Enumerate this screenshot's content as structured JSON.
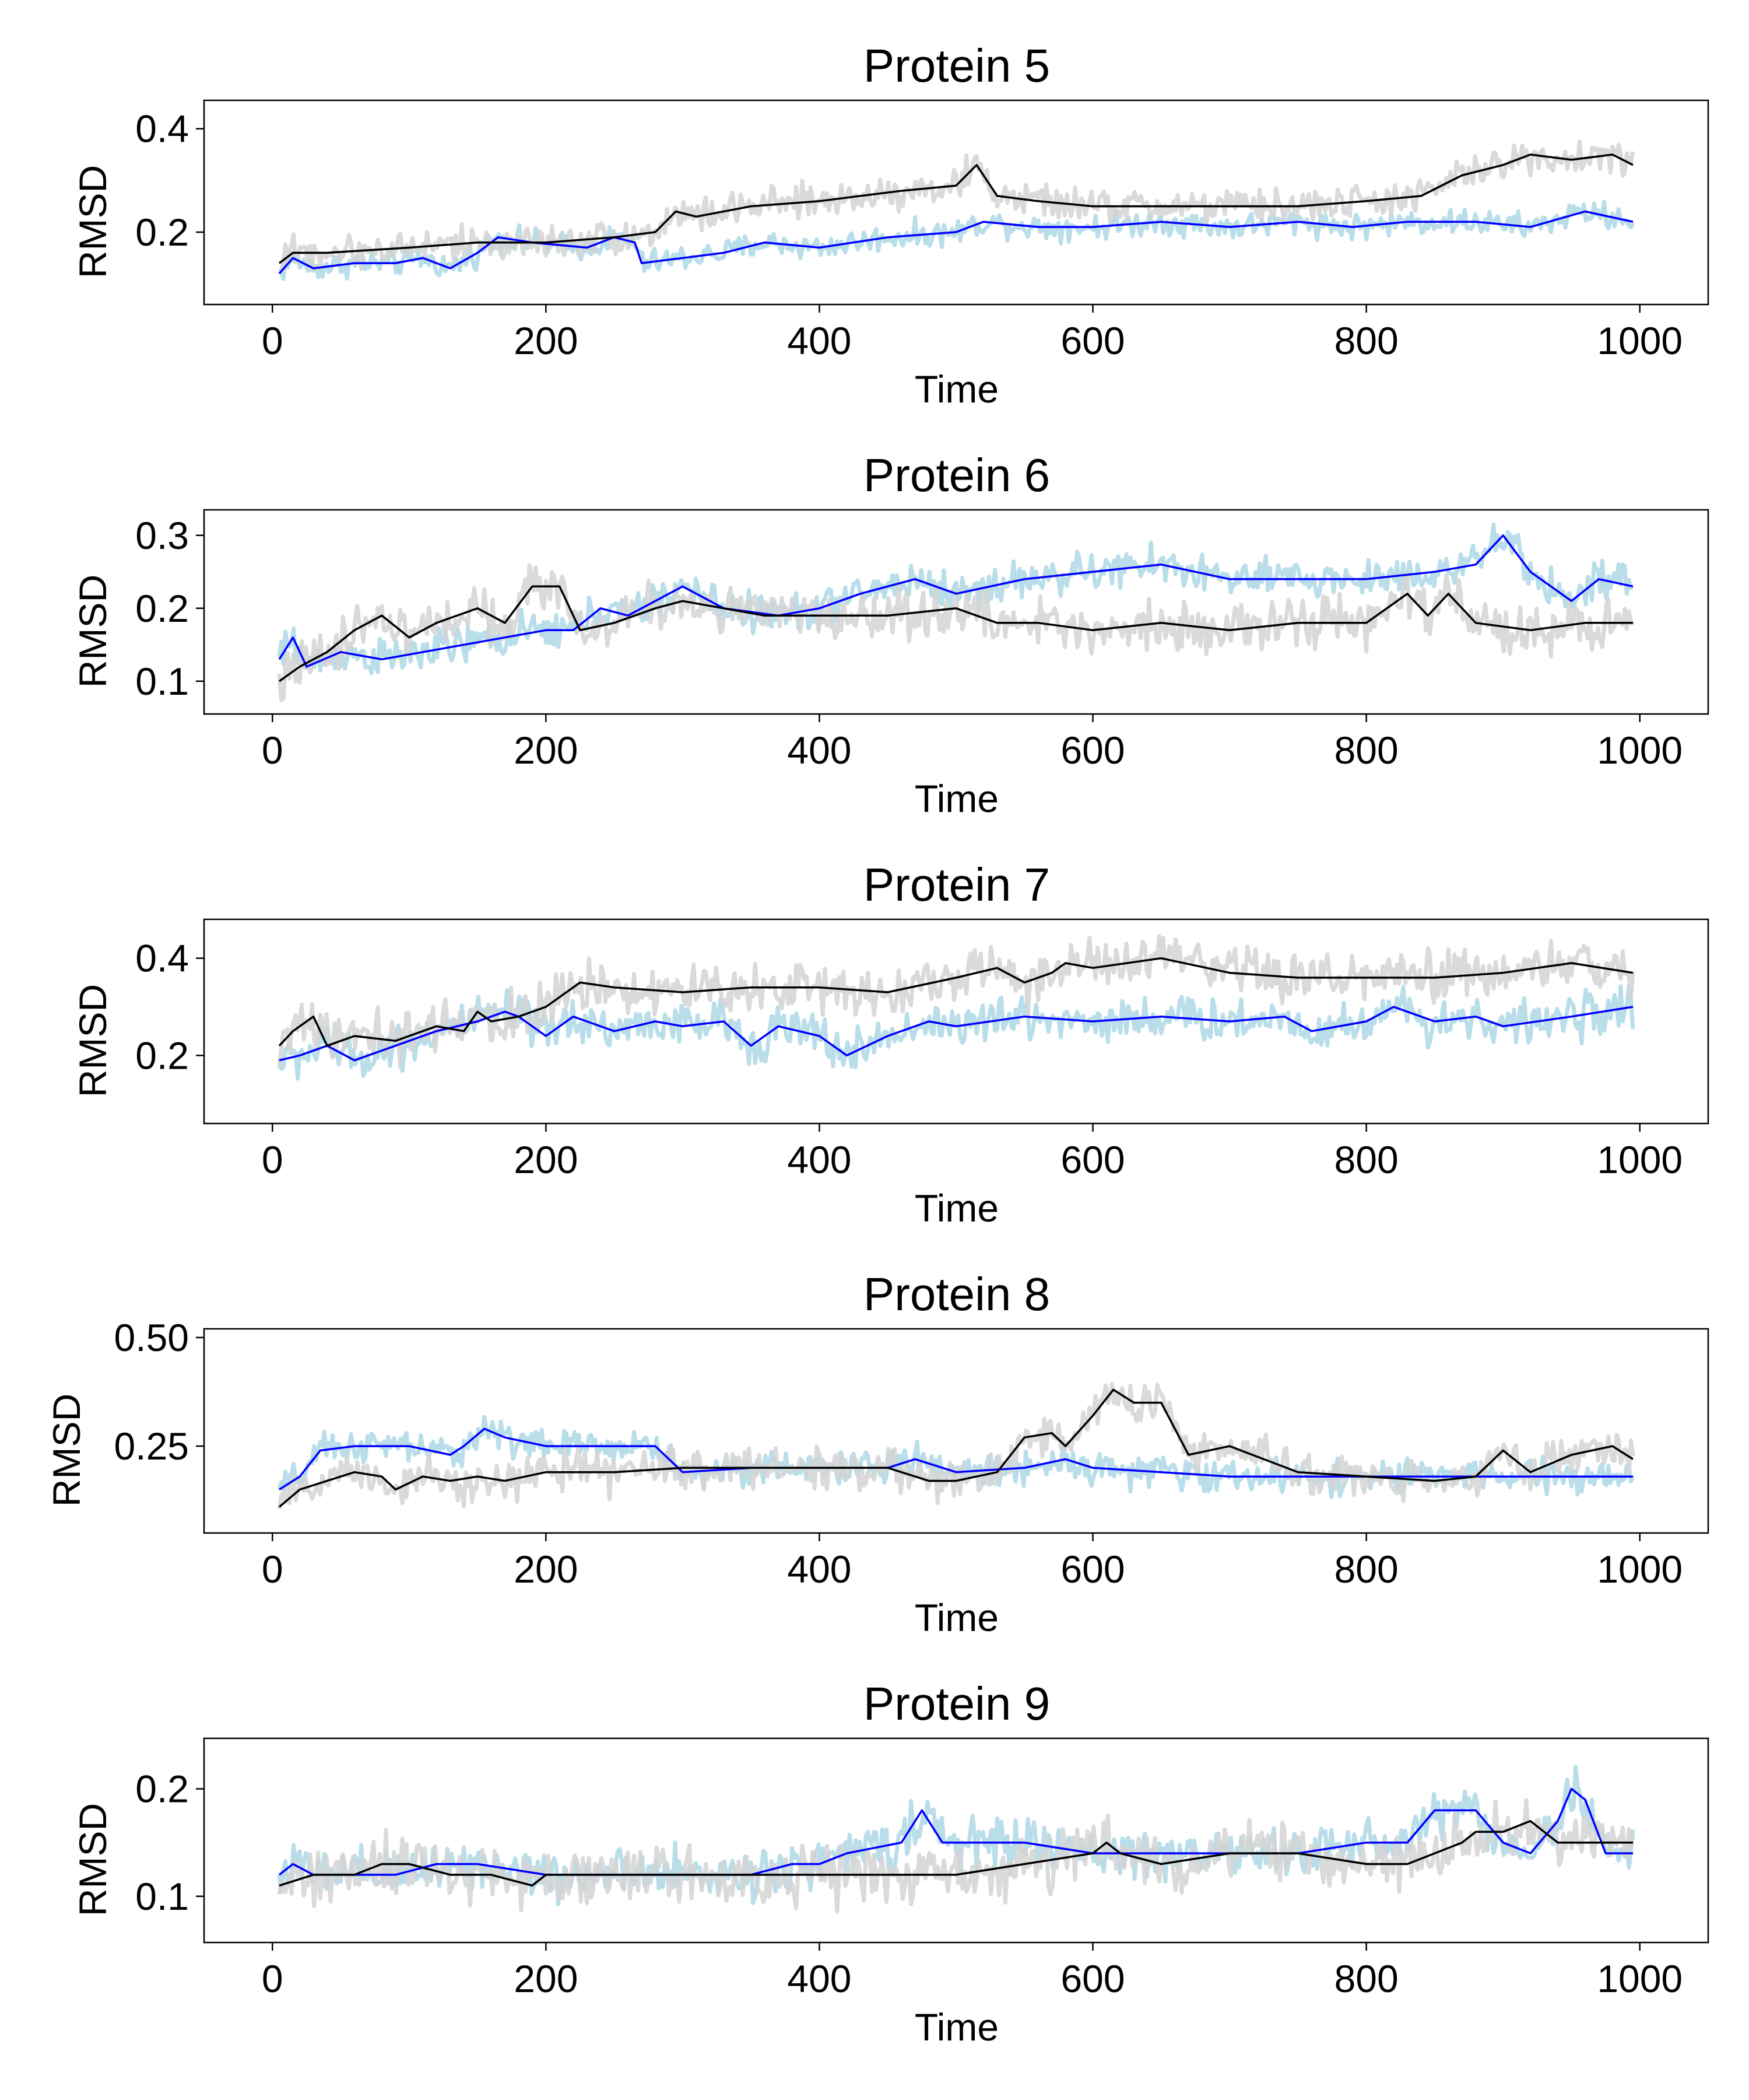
{
  "colors": {
    "series_a_raw": "#add8e6",
    "series_a_smooth": "#0000ff",
    "series_b_raw": "#d3d3d3",
    "series_b_smooth": "#000000"
  },
  "chart_data": [
    {
      "type": "line",
      "title": "Protein 5",
      "xlabel": "Time",
      "ylabel": "RMSD",
      "xlim": [
        -50,
        1050
      ],
      "ylim": [
        0.06,
        0.455
      ],
      "xticks": [
        0,
        200,
        400,
        600,
        800,
        1000
      ],
      "xtick_labels": [
        "0",
        "200",
        "400",
        "600",
        "800",
        "1000"
      ],
      "yticks": [
        0.2,
        0.4
      ],
      "ytick_labels": [
        "0.2",
        "0.4"
      ],
      "grid": false,
      "series": [
        {
          "color": "#0000ff",
          "band_color": "#add8e6",
          "band_halfwidth": 0.012,
          "x": [
            5,
            15,
            30,
            60,
            90,
            110,
            130,
            150,
            165,
            190,
            230,
            250,
            265,
            270,
            300,
            330,
            360,
            400,
            450,
            500,
            520,
            560,
            600,
            650,
            700,
            750,
            790,
            830,
            880,
            920,
            960,
            995
          ],
          "y": [
            0.12,
            0.15,
            0.13,
            0.14,
            0.14,
            0.15,
            0.13,
            0.16,
            0.19,
            0.18,
            0.17,
            0.19,
            0.18,
            0.14,
            0.15,
            0.16,
            0.18,
            0.17,
            0.19,
            0.2,
            0.22,
            0.21,
            0.21,
            0.22,
            0.21,
            0.22,
            0.21,
            0.22,
            0.22,
            0.21,
            0.24,
            0.22
          ]
        },
        {
          "color": "#000000",
          "band_color": "#d3d3d3",
          "band_halfwidth": 0.016,
          "x": [
            5,
            15,
            40,
            100,
            150,
            200,
            250,
            280,
            295,
            310,
            350,
            400,
            430,
            460,
            500,
            515,
            530,
            560,
            600,
            650,
            700,
            750,
            800,
            840,
            870,
            900,
            920,
            950,
            980,
            995
          ],
          "y": [
            0.14,
            0.16,
            0.16,
            0.17,
            0.18,
            0.18,
            0.19,
            0.2,
            0.24,
            0.23,
            0.25,
            0.26,
            0.27,
            0.28,
            0.29,
            0.33,
            0.27,
            0.26,
            0.25,
            0.25,
            0.25,
            0.25,
            0.26,
            0.27,
            0.31,
            0.33,
            0.35,
            0.34,
            0.35,
            0.33
          ]
        }
      ]
    },
    {
      "type": "line",
      "title": "Protein 6",
      "xlabel": "Time",
      "ylabel": "RMSD",
      "xlim": [
        -50,
        1050
      ],
      "ylim": [
        0.055,
        0.335
      ],
      "xticks": [
        0,
        200,
        400,
        600,
        800,
        1000
      ],
      "xtick_labels": [
        "0",
        "200",
        "400",
        "600",
        "800",
        "1000"
      ],
      "yticks": [
        0.1,
        0.2,
        0.3
      ],
      "ytick_labels": [
        "0.1",
        "0.2",
        "0.3"
      ],
      "grid": false,
      "series": [
        {
          "color": "#0000ff",
          "band_color": "#add8e6",
          "band_halfwidth": 0.013,
          "x": [
            5,
            15,
            25,
            50,
            80,
            110,
            140,
            170,
            200,
            220,
            240,
            260,
            300,
            330,
            370,
            400,
            430,
            470,
            500,
            550,
            600,
            650,
            700,
            750,
            800,
            850,
            880,
            900,
            920,
            950,
            970,
            995
          ],
          "y": [
            0.13,
            0.16,
            0.12,
            0.14,
            0.13,
            0.14,
            0.15,
            0.16,
            0.17,
            0.17,
            0.2,
            0.19,
            0.23,
            0.2,
            0.19,
            0.2,
            0.22,
            0.24,
            0.22,
            0.24,
            0.25,
            0.26,
            0.24,
            0.24,
            0.24,
            0.25,
            0.26,
            0.3,
            0.25,
            0.21,
            0.24,
            0.23
          ]
        },
        {
          "color": "#000000",
          "band_color": "#d3d3d3",
          "band_halfwidth": 0.016,
          "x": [
            5,
            20,
            40,
            60,
            80,
            100,
            120,
            150,
            170,
            190,
            210,
            225,
            250,
            280,
            300,
            330,
            360,
            400,
            450,
            500,
            530,
            560,
            600,
            650,
            700,
            750,
            800,
            830,
            845,
            860,
            880,
            920,
            960,
            995
          ],
          "y": [
            0.1,
            0.12,
            0.14,
            0.17,
            0.19,
            0.16,
            0.18,
            0.2,
            0.18,
            0.23,
            0.23,
            0.17,
            0.18,
            0.2,
            0.21,
            0.2,
            0.19,
            0.19,
            0.19,
            0.2,
            0.18,
            0.18,
            0.17,
            0.18,
            0.17,
            0.18,
            0.18,
            0.22,
            0.19,
            0.22,
            0.18,
            0.17,
            0.18,
            0.18
          ]
        }
      ]
    },
    {
      "type": "line",
      "title": "Protein 7",
      "xlabel": "Time",
      "ylabel": "RMSD",
      "xlim": [
        -50,
        1050
      ],
      "ylim": [
        0.06,
        0.48
      ],
      "xticks": [
        0,
        200,
        400,
        600,
        800,
        1000
      ],
      "xtick_labels": [
        "0",
        "200",
        "400",
        "600",
        "800",
        "1000"
      ],
      "yticks": [
        0.2,
        0.4
      ],
      "ytick_labels": [
        "0.2",
        "0.4"
      ],
      "grid": false,
      "series": [
        {
          "color": "#0000ff",
          "band_color": "#add8e6",
          "band_halfwidth": 0.022,
          "x": [
            5,
            20,
            40,
            60,
            80,
            100,
            120,
            150,
            170,
            180,
            200,
            220,
            250,
            280,
            300,
            330,
            350,
            370,
            400,
            420,
            450,
            480,
            500,
            550,
            600,
            650,
            700,
            740,
            760,
            800,
            820,
            850,
            880,
            900,
            950,
            995
          ],
          "y": [
            0.19,
            0.2,
            0.22,
            0.19,
            0.21,
            0.23,
            0.25,
            0.27,
            0.29,
            0.28,
            0.24,
            0.28,
            0.25,
            0.27,
            0.26,
            0.27,
            0.22,
            0.26,
            0.24,
            0.2,
            0.24,
            0.27,
            0.26,
            0.28,
            0.27,
            0.28,
            0.27,
            0.28,
            0.25,
            0.27,
            0.3,
            0.27,
            0.28,
            0.26,
            0.28,
            0.3
          ]
        },
        {
          "color": "#000000",
          "band_color": "#d3d3d3",
          "band_halfwidth": 0.026,
          "x": [
            5,
            15,
            30,
            40,
            60,
            90,
            120,
            140,
            150,
            160,
            180,
            200,
            225,
            250,
            300,
            350,
            400,
            450,
            500,
            530,
            550,
            570,
            580,
            600,
            650,
            700,
            750,
            800,
            850,
            900,
            950,
            995
          ],
          "y": [
            0.22,
            0.25,
            0.28,
            0.22,
            0.24,
            0.23,
            0.26,
            0.25,
            0.29,
            0.27,
            0.28,
            0.3,
            0.35,
            0.34,
            0.33,
            0.34,
            0.34,
            0.33,
            0.36,
            0.38,
            0.35,
            0.37,
            0.39,
            0.38,
            0.4,
            0.37,
            0.36,
            0.36,
            0.36,
            0.37,
            0.39,
            0.37
          ]
        }
      ]
    },
    {
      "type": "line",
      "title": "Protein 8",
      "xlabel": "Time",
      "ylabel": "RMSD",
      "xlim": [
        -50,
        1050
      ],
      "ylim": [
        0.05,
        0.52
      ],
      "xticks": [
        0,
        200,
        400,
        600,
        800,
        1000
      ],
      "xtick_labels": [
        "0",
        "200",
        "400",
        "600",
        "800",
        "1000"
      ],
      "yticks": [
        0.25,
        0.5
      ],
      "ytick_labels": [
        "0.25",
        "0.50"
      ],
      "grid": false,
      "series": [
        {
          "color": "#0000ff",
          "band_color": "#add8e6",
          "band_halfwidth": 0.018,
          "x": [
            5,
            20,
            35,
            60,
            100,
            130,
            140,
            155,
            170,
            200,
            250,
            280,
            300,
            350,
            400,
            450,
            470,
            500,
            550,
            580,
            600,
            650,
            700,
            750,
            800,
            850,
            900,
            950,
            995
          ],
          "y": [
            0.15,
            0.18,
            0.24,
            0.25,
            0.25,
            0.23,
            0.25,
            0.29,
            0.27,
            0.25,
            0.25,
            0.25,
            0.19,
            0.2,
            0.2,
            0.2,
            0.22,
            0.19,
            0.2,
            0.22,
            0.2,
            0.19,
            0.18,
            0.18,
            0.18,
            0.18,
            0.18,
            0.18,
            0.18
          ]
        },
        {
          "color": "#000000",
          "band_color": "#d3d3d3",
          "band_halfwidth": 0.022,
          "x": [
            5,
            20,
            40,
            60,
            80,
            90,
            110,
            130,
            150,
            170,
            200,
            250,
            300,
            350,
            400,
            450,
            480,
            500,
            530,
            550,
            570,
            580,
            600,
            615,
            630,
            650,
            670,
            700,
            750,
            800,
            850,
            880,
            900,
            920,
            950,
            980,
            995
          ],
          "y": [
            0.11,
            0.15,
            0.17,
            0.19,
            0.18,
            0.15,
            0.18,
            0.17,
            0.18,
            0.17,
            0.19,
            0.19,
            0.2,
            0.2,
            0.2,
            0.2,
            0.17,
            0.17,
            0.19,
            0.27,
            0.28,
            0.25,
            0.32,
            0.38,
            0.35,
            0.35,
            0.23,
            0.25,
            0.19,
            0.18,
            0.17,
            0.18,
            0.24,
            0.19,
            0.23,
            0.25,
            0.22
          ]
        }
      ]
    },
    {
      "type": "line",
      "title": "Protein 9",
      "xlabel": "Time",
      "ylabel": "RMSD",
      "xlim": [
        -50,
        1050
      ],
      "ylim": [
        0.057,
        0.247
      ],
      "xticks": [
        0,
        200,
        400,
        600,
        800,
        1000
      ],
      "xtick_labels": [
        "0",
        "200",
        "400",
        "600",
        "800",
        "1000"
      ],
      "yticks": [
        0.1,
        0.2
      ],
      "ytick_labels": [
        "0.1",
        "0.2"
      ],
      "grid": false,
      "series": [
        {
          "color": "#0000ff",
          "band_color": "#add8e6",
          "band_halfwidth": 0.011,
          "x": [
            5,
            15,
            30,
            60,
            90,
            120,
            150,
            200,
            250,
            300,
            350,
            380,
            400,
            420,
            460,
            475,
            490,
            500,
            550,
            600,
            650,
            700,
            750,
            800,
            830,
            850,
            870,
            880,
            900,
            920,
            940,
            950,
            960,
            975,
            995
          ],
          "y": [
            0.12,
            0.13,
            0.12,
            0.12,
            0.12,
            0.13,
            0.13,
            0.12,
            0.12,
            0.12,
            0.12,
            0.13,
            0.13,
            0.14,
            0.15,
            0.18,
            0.15,
            0.15,
            0.15,
            0.14,
            0.14,
            0.14,
            0.14,
            0.15,
            0.15,
            0.18,
            0.18,
            0.18,
            0.15,
            0.14,
            0.17,
            0.2,
            0.19,
            0.14,
            0.14
          ]
        },
        {
          "color": "#000000",
          "band_color": "#d3d3d3",
          "band_halfwidth": 0.013,
          "x": [
            5,
            30,
            60,
            80,
            100,
            130,
            160,
            190,
            200,
            250,
            300,
            350,
            400,
            450,
            500,
            550,
            600,
            610,
            620,
            650,
            700,
            750,
            800,
            830,
            850,
            870,
            880,
            900,
            920,
            940,
            960,
            995
          ],
          "y": [
            0.11,
            0.12,
            0.12,
            0.13,
            0.13,
            0.12,
            0.12,
            0.11,
            0.12,
            0.12,
            0.12,
            0.12,
            0.12,
            0.12,
            0.12,
            0.13,
            0.14,
            0.15,
            0.14,
            0.13,
            0.14,
            0.14,
            0.13,
            0.13,
            0.14,
            0.15,
            0.16,
            0.16,
            0.17,
            0.15,
            0.15,
            0.15
          ]
        }
      ]
    }
  ]
}
